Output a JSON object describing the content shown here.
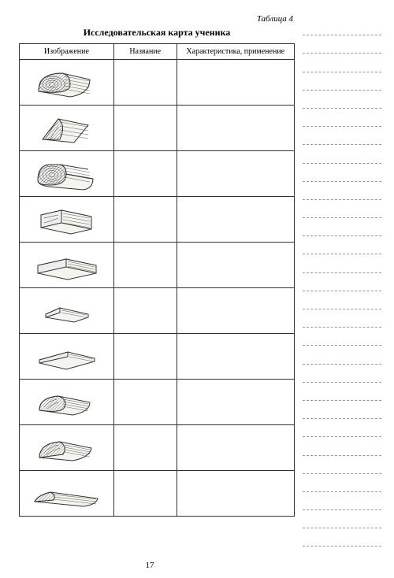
{
  "table_label": "Таблица 4",
  "title": "Исследовательская карта ученика",
  "columns": {
    "image": "Изображение",
    "name": "Название",
    "char": "Характеристика, применение"
  },
  "page_number": "17",
  "rows": [
    {
      "shape": "half-log"
    },
    {
      "shape": "quarter-log"
    },
    {
      "shape": "two-edge"
    },
    {
      "shape": "beam"
    },
    {
      "shape": "plank-thick"
    },
    {
      "shape": "batten"
    },
    {
      "shape": "board-thin"
    },
    {
      "shape": "slab-round"
    },
    {
      "shape": "slab-half"
    },
    {
      "shape": "slab-flat"
    }
  ],
  "dash_lines": 29,
  "style": {
    "stroke": "#333333",
    "fill_light": "#f5f5f0",
    "fill_hatch": "#888888"
  }
}
